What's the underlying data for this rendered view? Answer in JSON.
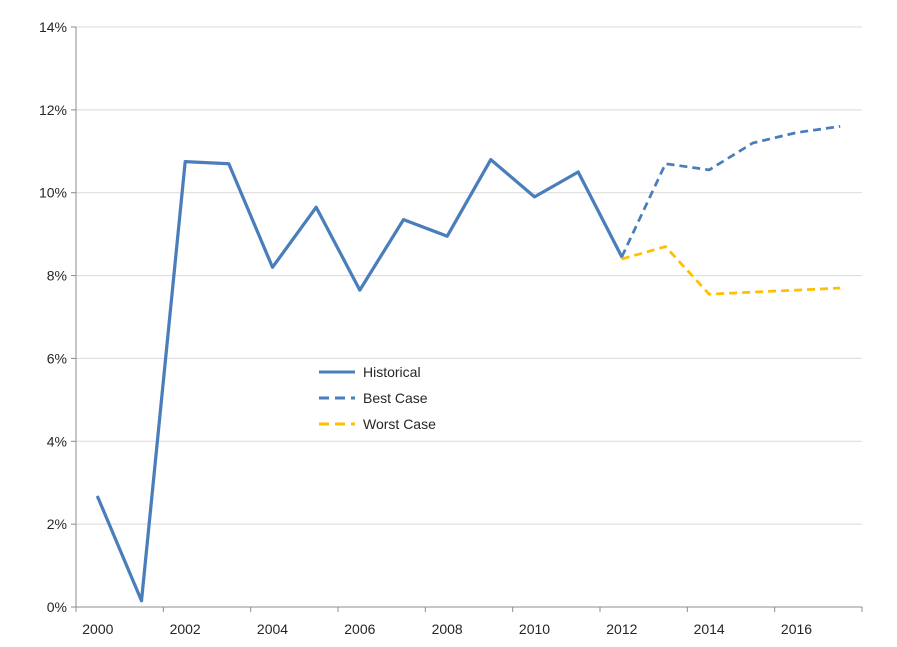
{
  "chart_data": {
    "type": "line",
    "title": "",
    "xlabel": "",
    "ylabel": "",
    "x_categories": [
      2000,
      2001,
      2002,
      2003,
      2004,
      2005,
      2006,
      2007,
      2008,
      2009,
      2010,
      2011,
      2012,
      2013,
      2014,
      2015,
      2016,
      2017
    ],
    "x_axis": {
      "tick_labels": [
        "2000",
        "2002",
        "2004",
        "2006",
        "2008",
        "2010",
        "2012",
        "2014",
        "2016"
      ],
      "label_interval_years": 2
    },
    "y_axis": {
      "min": 0,
      "max": 14,
      "step": 2,
      "format": "percent",
      "tick_labels": [
        "0%",
        "2%",
        "4%",
        "6%",
        "8%",
        "10%",
        "12%",
        "14%"
      ]
    },
    "grid": true,
    "legend": {
      "position": "overlay-center-left",
      "border": false,
      "items": [
        "Historical",
        "Best Case",
        "Worst Case"
      ]
    },
    "series": [
      {
        "name": "Historical",
        "line_style": "solid",
        "color": "#4a7ebb",
        "x": [
          2000,
          2001,
          2002,
          2003,
          2004,
          2005,
          2006,
          2007,
          2008,
          2009,
          2010,
          2011,
          2012
        ],
        "y": [
          2.65,
          0.15,
          10.75,
          10.7,
          8.2,
          9.65,
          7.65,
          9.35,
          8.95,
          10.8,
          9.9,
          10.5,
          8.45
        ]
      },
      {
        "name": "Best Case",
        "line_style": "dashed",
        "color": "#4a7ebb",
        "x": [
          2012,
          2013,
          2014,
          2015,
          2016,
          2017
        ],
        "y": [
          8.45,
          10.7,
          10.55,
          11.2,
          11.45,
          11.6
        ]
      },
      {
        "name": "Worst Case",
        "line_style": "dashed",
        "color": "#ffc000",
        "x": [
          2012,
          2013,
          2014,
          2015,
          2016,
          2017
        ],
        "y": [
          8.4,
          8.7,
          7.55,
          7.6,
          7.65,
          7.7
        ]
      }
    ],
    "colors": {
      "gridline": "#d9d9d9",
      "axis": "#8c8c8c",
      "text": "#262626",
      "background": "#ffffff"
    }
  }
}
